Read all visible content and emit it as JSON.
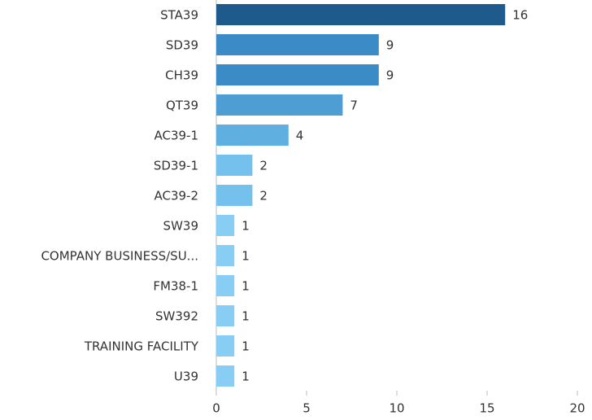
{
  "chart_data": {
    "type": "hbar",
    "categories": [
      "STA39",
      "SD39",
      "CH39",
      "QT39",
      "AC39-1",
      "SD39-1",
      "AC39-2",
      "SW39",
      "COMPANY BUSINESS/SU...",
      "FM38-1",
      "SW392",
      "TRAINING FACILITY",
      "U39"
    ],
    "values": [
      16,
      9,
      9,
      7,
      4,
      2,
      2,
      1,
      1,
      1,
      1,
      1,
      1
    ],
    "colors": [
      "#1f5a8c",
      "#3b8bc6",
      "#3b8bc6",
      "#4e9dd3",
      "#5fafe1",
      "#74c1ee",
      "#74c1ee",
      "#87cdf4",
      "#87cdf4",
      "#87cdf4",
      "#87cdf4",
      "#87cdf4",
      "#87cdf4"
    ],
    "xlim": [
      0,
      20
    ],
    "xticks": [
      0,
      5,
      10,
      15,
      20
    ],
    "grid": false
  }
}
